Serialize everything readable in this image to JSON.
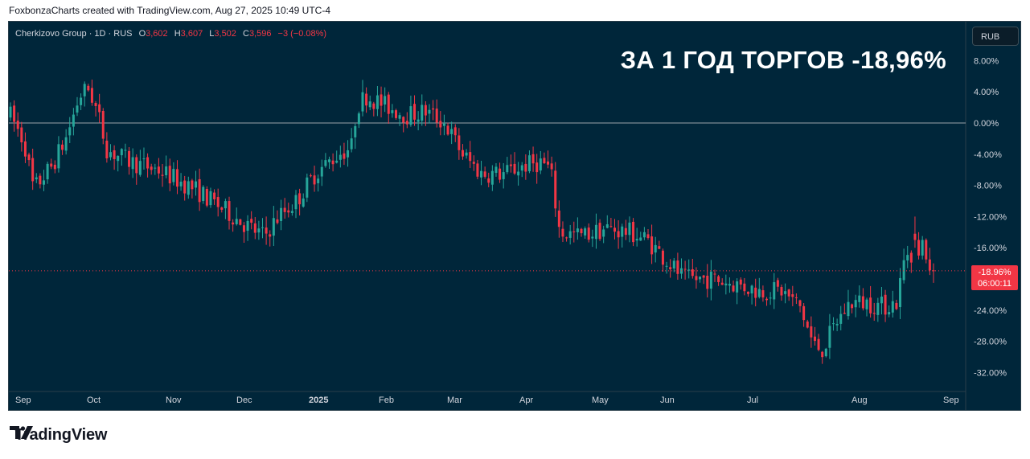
{
  "credit": "FoxbonzaCharts created with TradingView.com, Aug 27, 2025 10:49 UTC-4",
  "headline": "ЗА 1 ГОД ТОРГОВ -18,96%",
  "currency_button": "RUB",
  "legend": {
    "symbol": "Cherkizovo Group · 1D · RUS",
    "o_label": "O",
    "o_value": "3,602",
    "h_label": "H",
    "h_value": "3,607",
    "l_label": "L",
    "l_value": "3,502",
    "c_label": "C",
    "c_value": "3,596",
    "change": "−3 (−0.08%)"
  },
  "last_value": {
    "percent": "-18.96%",
    "countdown": "06:00:11"
  },
  "brand": {
    "text": "TradingView"
  },
  "colors": {
    "up": "#26a69a",
    "down": "#f23645",
    "background": "#00263a",
    "axis_text": "#d1d4dc"
  },
  "chart_data": {
    "type": "candlestick",
    "y_unit": "percent change",
    "ylim": [
      -34,
      10
    ],
    "y_ticks": [
      "8.00%",
      "4.00%",
      "0.00%",
      "-4.00%",
      "-8.00%",
      "-12.00%",
      "-16.00%",
      "-20.00%",
      "-24.00%",
      "-28.00%",
      "-32.00%"
    ],
    "x_ticks": [
      "Sep",
      "Oct",
      "Nov",
      "Dec",
      "2025",
      "Feb",
      "Mar",
      "Apr",
      "May",
      "Jun",
      "Jul",
      "Aug",
      "Sep"
    ],
    "baseline": 0,
    "last_value": -18.96,
    "trend": [
      {
        "t": 0.0,
        "v": 1.0
      },
      {
        "t": 0.015,
        "v": -2.5
      },
      {
        "t": 0.025,
        "v": -8.5
      },
      {
        "t": 0.045,
        "v": -5.5
      },
      {
        "t": 0.06,
        "v": -2.0
      },
      {
        "t": 0.075,
        "v": 3.5
      },
      {
        "t": 0.085,
        "v": 4.5
      },
      {
        "t": 0.095,
        "v": 1.0
      },
      {
        "t": 0.105,
        "v": -3.5
      },
      {
        "t": 0.13,
        "v": -5.0
      },
      {
        "t": 0.16,
        "v": -6.0
      },
      {
        "t": 0.2,
        "v": -8.5
      },
      {
        "t": 0.23,
        "v": -11.0
      },
      {
        "t": 0.26,
        "v": -13.5
      },
      {
        "t": 0.275,
        "v": -14.5
      },
      {
        "t": 0.29,
        "v": -12.0
      },
      {
        "t": 0.31,
        "v": -10.0
      },
      {
        "t": 0.33,
        "v": -6.5
      },
      {
        "t": 0.355,
        "v": -4.0
      },
      {
        "t": 0.37,
        "v": -3.0
      },
      {
        "t": 0.375,
        "v": 2.0
      },
      {
        "t": 0.385,
        "v": 3.5
      },
      {
        "t": 0.41,
        "v": 2.0
      },
      {
        "t": 0.43,
        "v": 1.0
      },
      {
        "t": 0.45,
        "v": 1.5
      },
      {
        "t": 0.47,
        "v": 0.0
      },
      {
        "t": 0.49,
        "v": -4.0
      },
      {
        "t": 0.51,
        "v": -6.5
      },
      {
        "t": 0.535,
        "v": -6.5
      },
      {
        "t": 0.555,
        "v": -5.5
      },
      {
        "t": 0.575,
        "v": -5.0
      },
      {
        "t": 0.585,
        "v": -6.0
      },
      {
        "t": 0.595,
        "v": -14.0
      },
      {
        "t": 0.62,
        "v": -14.5
      },
      {
        "t": 0.645,
        "v": -13.5
      },
      {
        "t": 0.67,
        "v": -14.0
      },
      {
        "t": 0.69,
        "v": -15.0
      },
      {
        "t": 0.71,
        "v": -17.5
      },
      {
        "t": 0.73,
        "v": -20.0
      },
      {
        "t": 0.76,
        "v": -20.0
      },
      {
        "t": 0.78,
        "v": -20.5
      },
      {
        "t": 0.81,
        "v": -21.5
      },
      {
        "t": 0.835,
        "v": -21.5
      },
      {
        "t": 0.855,
        "v": -23.5
      },
      {
        "t": 0.87,
        "v": -28.5
      },
      {
        "t": 0.88,
        "v": -29.0
      },
      {
        "t": 0.895,
        "v": -25.5
      },
      {
        "t": 0.91,
        "v": -23.0
      },
      {
        "t": 0.925,
        "v": -23.0
      },
      {
        "t": 0.945,
        "v": -23.5
      },
      {
        "t": 0.96,
        "v": -23.0
      },
      {
        "t": 0.97,
        "v": -16.5
      },
      {
        "t": 0.985,
        "v": -17.0
      },
      {
        "t": 1.0,
        "v": -16.0
      }
    ],
    "recent_candles": [
      {
        "o": -14.2,
        "h": -12.0,
        "l": -16.0,
        "c": -15.0
      },
      {
        "o": -15.0,
        "h": -14.0,
        "l": -17.5,
        "c": -17.0
      },
      {
        "o": -17.0,
        "h": -14.5,
        "l": -17.5,
        "c": -15.0
      },
      {
        "o": -15.0,
        "h": -14.8,
        "l": -18.0,
        "c": -17.5
      },
      {
        "o": -17.5,
        "h": -16.0,
        "l": -19.5,
        "c": -18.9
      },
      {
        "o": -18.9,
        "h": -18.0,
        "l": -20.5,
        "c": -18.96
      }
    ]
  }
}
